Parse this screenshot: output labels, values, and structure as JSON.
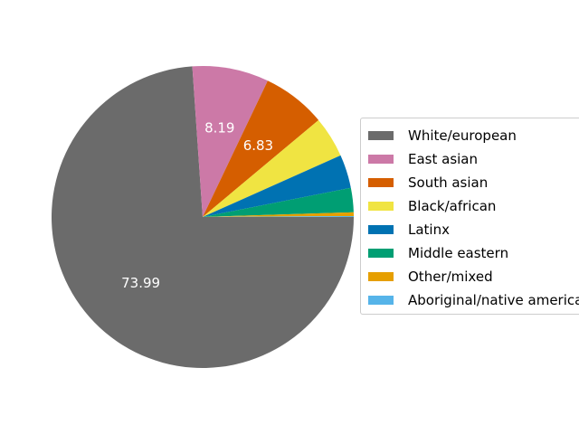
{
  "chart_data": {
    "type": "pie",
    "title": "",
    "categories": [
      "White/european",
      "East asian",
      "South asian",
      "Black/african",
      "Latinx",
      "Middle eastern",
      "Other/mixed",
      "Aboriginal/native american"
    ],
    "values": [
      73.99,
      8.19,
      6.83,
      4.4,
      3.6,
      2.6,
      0.4,
      0.1
    ],
    "colors": [
      "#6b6b6b",
      "#cc79a7",
      "#d55e00",
      "#f0e442",
      "#0072b2",
      "#009e73",
      "#e69f00",
      "#56b4e9"
    ],
    "start_angle_deg": 0,
    "direction": "clockwise",
    "data_labels": [
      "73.99",
      "8.19",
      "6.83",
      "",
      "",
      "",
      "",
      ""
    ],
    "legend_placement": "right"
  }
}
